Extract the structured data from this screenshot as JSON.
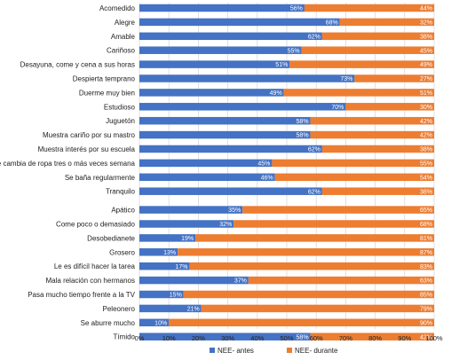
{
  "chart_data": {
    "type": "bar",
    "stacked": true,
    "orientation": "horizontal",
    "percent_stacked": true,
    "categories": [
      "Acomedido",
      "Alegre",
      "Amable",
      "Cariñoso",
      "Desayuna, come y cena a sus horas",
      "Despierta temprano",
      "Duerme muy bien",
      "Estudioso",
      "Juguetón",
      "Muestra cariño por su mastro",
      "Muestra interés por su escuela",
      "Se cambia de ropa tres o más veces semana",
      "Se baña regularmente",
      "Tranquilo",
      "Apático",
      "Come poco o demasiado",
      "Desobedianete",
      "Grosero",
      "Le es difícil hacer la tarea",
      "Mala relación con hermanos",
      "Pasa mucho tiempo frente a la TV",
      "Peleonero",
      "Se aburre mucho",
      "Tímido"
    ],
    "series": [
      {
        "name": "NEE- antes",
        "values": [
          56,
          68,
          62,
          55,
          51,
          73,
          49,
          70,
          58,
          58,
          62,
          45,
          46,
          62,
          35,
          32,
          19,
          13,
          17,
          37,
          15,
          21,
          10,
          58
        ],
        "labels": [
          "56%",
          "68%",
          "62%",
          "55%",
          "51%",
          "73%",
          "49%",
          "70%",
          "58%",
          "58%",
          "62%",
          "45%",
          "46%",
          "62%",
          "35%",
          "32%",
          "19%",
          "13%",
          "17%",
          "37%",
          "15%",
          "21%",
          "10%",
          "58%"
        ]
      },
      {
        "name": "NEE- durante",
        "values": [
          44,
          32,
          38,
          45,
          49,
          27,
          51,
          30,
          42,
          42,
          38,
          55,
          54,
          38,
          65,
          68,
          81,
          87,
          83,
          63,
          85,
          79,
          90,
          42
        ],
        "labels": [
          "44%",
          "32%",
          "38%",
          "45%",
          "49%",
          "27%",
          "51%",
          "30%",
          "42%",
          "42%",
          "38%",
          "55%",
          "54%",
          "38%",
          "65%",
          "68%",
          "81%",
          "87%",
          "83%",
          "63%",
          "85%",
          "79%",
          "90%",
          "42%"
        ]
      }
    ],
    "xlim": [
      0,
      100
    ],
    "xticks": [
      0,
      10,
      20,
      30,
      40,
      50,
      60,
      70,
      80,
      90,
      100
    ],
    "xtick_labels": [
      "0%",
      "10%",
      "20%",
      "30%",
      "40%",
      "50%",
      "60%",
      "70%",
      "80%",
      "90%",
      "100%"
    ],
    "group_break_after": 13,
    "grid": true,
    "legend_position": "bottom",
    "colors": [
      "#4472c4",
      "#ed7d31"
    ]
  }
}
